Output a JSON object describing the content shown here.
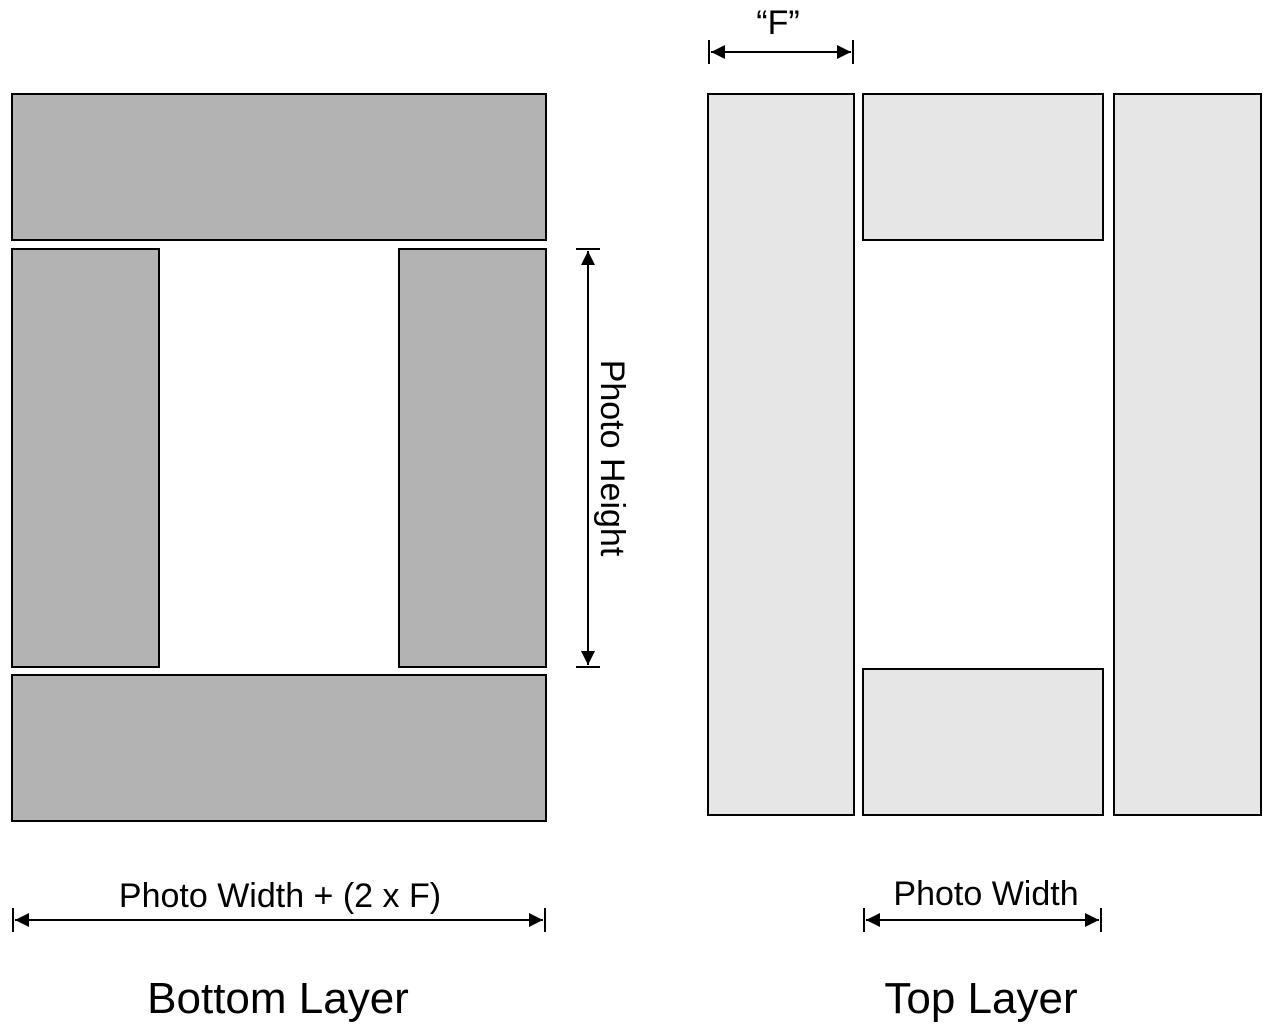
{
  "colors": {
    "bottom_fill": "#b3b3b3",
    "top_fill": "#e6e6e6",
    "stroke": "#000000"
  },
  "labels": {
    "f_dimension": "“F”",
    "photo_height": "Photo Height",
    "bottom_width": "Photo Width + (2 x F)",
    "top_width": "Photo Width",
    "bottom_layer": "Bottom Layer",
    "top_layer": "Top Layer"
  }
}
